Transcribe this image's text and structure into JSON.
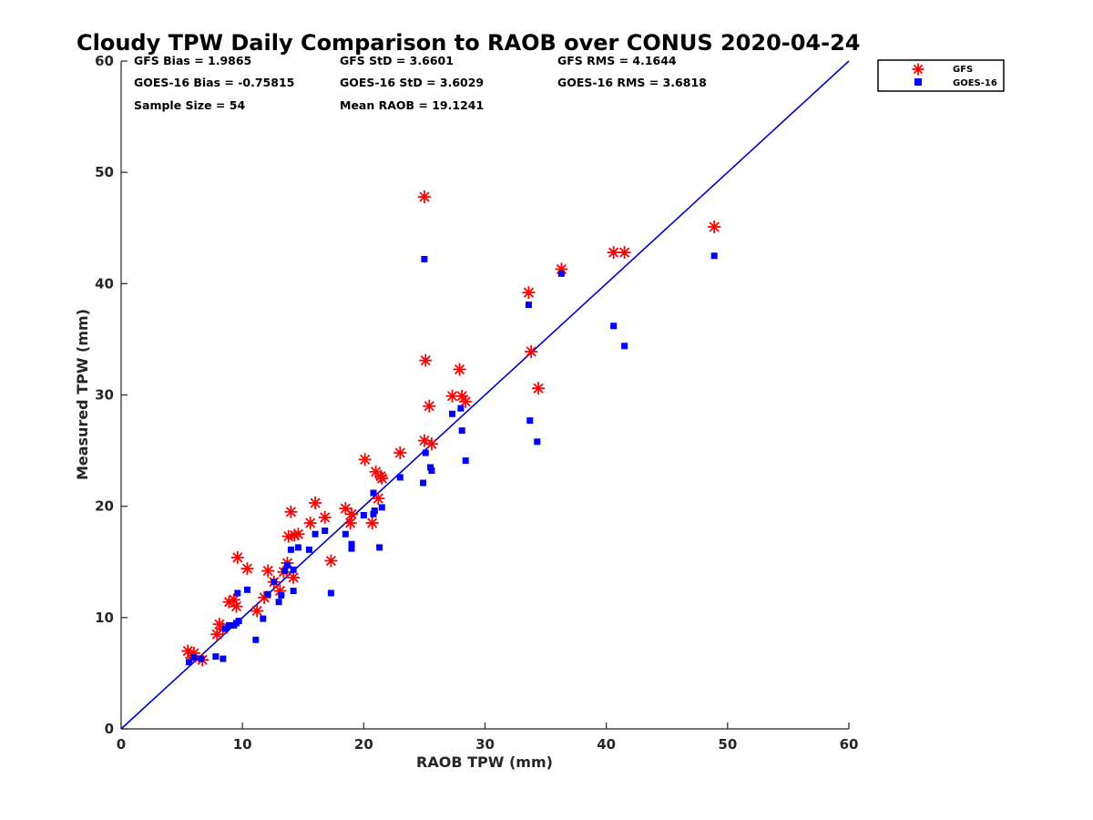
{
  "chart_data": {
    "type": "scatter",
    "title": "Cloudy TPW Daily Comparison to RAOB over CONUS 2020-04-24",
    "xlabel": "RAOB TPW (mm)",
    "ylabel": "Measured TPW (mm)",
    "xlim": [
      0,
      60
    ],
    "ylim": [
      0,
      60
    ],
    "xticks": [
      "0",
      "10",
      "20",
      "30",
      "40",
      "50",
      "60"
    ],
    "yticks": [
      "0",
      "10",
      "20",
      "30",
      "40",
      "50",
      "60"
    ],
    "grid": false,
    "legend_position": "outside top-right",
    "reference_line": {
      "kind": "one-to-one",
      "color": "#0000cc"
    },
    "stats": [
      {
        "text": "GFS Bias = 1.9865"
      },
      {
        "text": "GFS StD = 3.6601"
      },
      {
        "text": "GFS RMS = 4.1644"
      },
      {
        "text": "GOES-16 Bias = -0.75815"
      },
      {
        "text": "GOES-16 StD = 3.6029"
      },
      {
        "text": "GOES-16 RMS = 3.6818"
      },
      {
        "text": "Sample Size = 54"
      },
      {
        "text": "Mean RAOB = 19.1241"
      }
    ],
    "series": [
      {
        "name": "GFS",
        "marker": "asterisk",
        "color": "#ff0000",
        "points": [
          [
            5.5,
            7.0
          ],
          [
            6.0,
            6.8
          ],
          [
            6.7,
            6.2
          ],
          [
            7.9,
            8.5
          ],
          [
            8.1,
            9.4
          ],
          [
            8.4,
            9.0
          ],
          [
            8.9,
            11.4
          ],
          [
            9.3,
            11.6
          ],
          [
            9.5,
            11.0
          ],
          [
            9.6,
            15.4
          ],
          [
            10.4,
            14.4
          ],
          [
            11.2,
            10.6
          ],
          [
            11.8,
            11.8
          ],
          [
            12.1,
            14.2
          ],
          [
            12.6,
            13.2
          ],
          [
            13.1,
            12.4
          ],
          [
            13.4,
            14.1
          ],
          [
            13.7,
            14.9
          ],
          [
            13.8,
            17.3
          ],
          [
            14.0,
            19.5
          ],
          [
            14.2,
            13.6
          ],
          [
            14.3,
            17.4
          ],
          [
            14.6,
            17.5
          ],
          [
            15.6,
            18.5
          ],
          [
            16.0,
            20.3
          ],
          [
            16.8,
            19.0
          ],
          [
            17.3,
            15.1
          ],
          [
            18.5,
            19.8
          ],
          [
            18.9,
            18.5
          ],
          [
            19.0,
            19.3
          ],
          [
            20.1,
            24.2
          ],
          [
            20.7,
            18.5
          ],
          [
            21.0,
            23.1
          ],
          [
            21.2,
            20.7
          ],
          [
            21.4,
            22.7
          ],
          [
            21.5,
            22.5
          ],
          [
            23.0,
            24.8
          ],
          [
            25.0,
            47.8
          ],
          [
            25.0,
            25.9
          ],
          [
            25.1,
            33.1
          ],
          [
            25.4,
            29.0
          ],
          [
            25.6,
            25.6
          ],
          [
            27.3,
            29.9
          ],
          [
            27.9,
            32.3
          ],
          [
            28.1,
            29.9
          ],
          [
            28.4,
            29.4
          ],
          [
            33.6,
            39.2
          ],
          [
            33.8,
            33.9
          ],
          [
            34.4,
            30.6
          ],
          [
            36.3,
            41.3
          ],
          [
            40.6,
            42.8
          ],
          [
            41.5,
            42.8
          ],
          [
            48.9,
            45.1
          ],
          [
            5.8,
            6.4
          ]
        ]
      },
      {
        "name": "GOES-16",
        "marker": "square",
        "color": "#0000ff",
        "points": [
          [
            5.6,
            6.0
          ],
          [
            6.0,
            6.4
          ],
          [
            6.6,
            6.3
          ],
          [
            7.8,
            6.5
          ],
          [
            8.4,
            6.3
          ],
          [
            8.9,
            9.3
          ],
          [
            9.3,
            9.3
          ],
          [
            9.7,
            9.7
          ],
          [
            9.6,
            12.2
          ],
          [
            10.4,
            12.5
          ],
          [
            11.1,
            8.0
          ],
          [
            11.7,
            9.9
          ],
          [
            12.1,
            12.1
          ],
          [
            12.6,
            13.2
          ],
          [
            13.0,
            11.4
          ],
          [
            13.2,
            12.0
          ],
          [
            13.5,
            14.2
          ],
          [
            13.7,
            14.7
          ],
          [
            14.0,
            16.1
          ],
          [
            14.2,
            12.4
          ],
          [
            14.2,
            14.3
          ],
          [
            14.6,
            16.3
          ],
          [
            15.5,
            16.1
          ],
          [
            16.0,
            17.5
          ],
          [
            16.8,
            17.8
          ],
          [
            17.3,
            12.2
          ],
          [
            18.5,
            17.5
          ],
          [
            19.0,
            16.2
          ],
          [
            19.0,
            16.6
          ],
          [
            20.0,
            19.2
          ],
          [
            20.8,
            21.2
          ],
          [
            20.8,
            19.3
          ],
          [
            20.9,
            19.6
          ],
          [
            21.3,
            16.3
          ],
          [
            21.5,
            19.9
          ],
          [
            23.0,
            22.6
          ],
          [
            25.0,
            42.2
          ],
          [
            24.9,
            22.1
          ],
          [
            25.1,
            24.8
          ],
          [
            25.5,
            23.5
          ],
          [
            25.6,
            23.2
          ],
          [
            27.3,
            28.3
          ],
          [
            28.0,
            28.8
          ],
          [
            28.1,
            26.8
          ],
          [
            28.4,
            24.1
          ],
          [
            33.6,
            38.1
          ],
          [
            33.7,
            27.7
          ],
          [
            34.3,
            25.8
          ],
          [
            36.3,
            40.9
          ],
          [
            40.6,
            36.2
          ],
          [
            41.5,
            34.4
          ],
          [
            48.9,
            42.5
          ],
          [
            9.5,
            9.5
          ],
          [
            8.6,
            9.0
          ]
        ]
      }
    ]
  }
}
